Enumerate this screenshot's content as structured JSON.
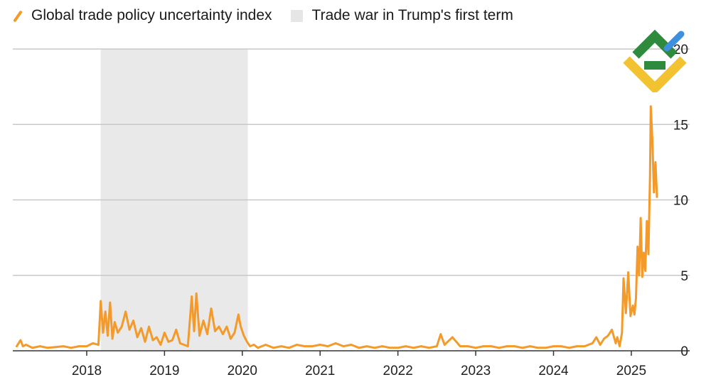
{
  "legend": {
    "line_label": "Global trade policy uncertainty index",
    "band_label": "Trade war in Trump's first term",
    "line_icon": "diagonal-line-swatch",
    "band_icon": "square-swatch"
  },
  "colors": {
    "line": "#f39a2b",
    "band": "#e9e9e9",
    "grid": "#c8c8c8",
    "axis": "#333333",
    "logo_green": "#2e8b3d",
    "logo_yellow": "#f2c230",
    "logo_blue": "#3d8fe0"
  },
  "chart_data": {
    "type": "line",
    "title": "",
    "xlabel": "",
    "ylabel": "",
    "xlim": [
      2017.05,
      2025.75
    ],
    "ylim": [
      0,
      20
    ],
    "y_ticks": [
      0,
      5,
      10,
      15,
      20
    ],
    "x_ticks": [
      2018,
      2019,
      2020,
      2021,
      2022,
      2023,
      2024,
      2025
    ],
    "x_tick_labels": [
      "2018",
      "2019",
      "2020",
      "2021",
      "2022",
      "2023",
      "2024",
      "2025"
    ],
    "grid": "horizontal",
    "y_axis_position": "right",
    "legend_position": "top-left",
    "shaded_region": {
      "label": "Trade war in Trump's first term",
      "x": [
        2018.18,
        2020.07
      ]
    },
    "series": [
      {
        "name": "Global trade policy uncertainty index",
        "x": [
          2017.1,
          2017.15,
          2017.18,
          2017.22,
          2017.3,
          2017.4,
          2017.5,
          2017.6,
          2017.7,
          2017.8,
          2017.9,
          2018.0,
          2018.08,
          2018.15,
          2018.18,
          2018.21,
          2018.24,
          2018.27,
          2018.3,
          2018.33,
          2018.36,
          2018.4,
          2018.45,
          2018.5,
          2018.55,
          2018.6,
          2018.65,
          2018.7,
          2018.75,
          2018.8,
          2018.85,
          2018.9,
          2018.95,
          2019.0,
          2019.05,
          2019.1,
          2019.15,
          2019.2,
          2019.25,
          2019.3,
          2019.35,
          2019.38,
          2019.41,
          2019.45,
          2019.5,
          2019.55,
          2019.6,
          2019.65,
          2019.7,
          2019.75,
          2019.8,
          2019.85,
          2019.9,
          2019.95,
          2019.98,
          2020.02,
          2020.06,
          2020.1,
          2020.15,
          2020.2,
          2020.3,
          2020.4,
          2020.5,
          2020.6,
          2020.7,
          2020.8,
          2020.9,
          2021.0,
          2021.1,
          2021.2,
          2021.3,
          2021.4,
          2021.5,
          2021.6,
          2021.7,
          2021.8,
          2021.9,
          2022.0,
          2022.1,
          2022.2,
          2022.3,
          2022.4,
          2022.5,
          2022.55,
          2022.6,
          2022.7,
          2022.8,
          2022.9,
          2023.0,
          2023.1,
          2023.2,
          2023.3,
          2023.4,
          2023.5,
          2023.6,
          2023.7,
          2023.8,
          2023.9,
          2024.0,
          2024.1,
          2024.2,
          2024.3,
          2024.4,
          2024.5,
          2024.55,
          2024.6,
          2024.65,
          2024.7,
          2024.75,
          2024.8,
          2024.82,
          2024.85,
          2024.88,
          2024.9,
          2024.93,
          2024.96,
          2024.99,
          2025.02,
          2025.04,
          2025.06,
          2025.08,
          2025.1,
          2025.12,
          2025.14,
          2025.16,
          2025.18,
          2025.2,
          2025.22,
          2025.24,
          2025.25,
          2025.27,
          2025.29,
          2025.31,
          2025.33
        ],
        "values": [
          0.3,
          0.7,
          0.3,
          0.4,
          0.2,
          0.3,
          0.2,
          0.25,
          0.3,
          0.2,
          0.3,
          0.3,
          0.5,
          0.4,
          3.3,
          1.2,
          2.6,
          1.0,
          3.2,
          0.8,
          1.9,
          1.2,
          1.6,
          2.6,
          1.4,
          2.0,
          0.9,
          1.5,
          0.6,
          1.6,
          0.7,
          0.9,
          0.4,
          1.2,
          0.6,
          0.7,
          1.4,
          0.5,
          0.4,
          0.3,
          3.6,
          1.3,
          3.8,
          1.0,
          2.0,
          1.1,
          2.8,
          1.3,
          1.6,
          1.1,
          1.6,
          0.8,
          1.2,
          2.4,
          1.6,
          1.0,
          0.6,
          0.3,
          0.4,
          0.2,
          0.4,
          0.2,
          0.3,
          0.2,
          0.4,
          0.3,
          0.3,
          0.4,
          0.3,
          0.5,
          0.3,
          0.4,
          0.2,
          0.3,
          0.2,
          0.3,
          0.2,
          0.2,
          0.3,
          0.2,
          0.3,
          0.2,
          0.3,
          1.1,
          0.4,
          0.9,
          0.3,
          0.3,
          0.2,
          0.3,
          0.3,
          0.2,
          0.3,
          0.3,
          0.2,
          0.3,
          0.2,
          0.2,
          0.3,
          0.3,
          0.2,
          0.3,
          0.3,
          0.5,
          0.9,
          0.4,
          0.8,
          1.0,
          1.4,
          0.5,
          0.9,
          0.3,
          1.2,
          4.8,
          2.5,
          5.2,
          2.3,
          3.0,
          2.4,
          3.5,
          6.9,
          5.0,
          8.8,
          4.9,
          6.5,
          5.3,
          8.6,
          6.4,
          11.5,
          16.2,
          14.0,
          10.5,
          12.5,
          10.2
        ]
      }
    ]
  }
}
